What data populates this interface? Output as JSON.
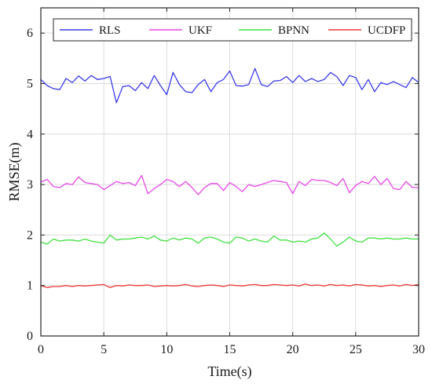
{
  "chart_data": {
    "type": "line",
    "title": "",
    "xlabel": "Time(s)",
    "ylabel": "RMSE(m)",
    "xlim": [
      0,
      30
    ],
    "ylim": [
      0,
      6.5
    ],
    "xticks": [
      0,
      5,
      10,
      15,
      20,
      25,
      30
    ],
    "xtick_labels": [
      "0",
      "5",
      "10",
      "15",
      "20",
      "25",
      "30"
    ],
    "yticks": [
      0,
      1,
      2,
      3,
      4,
      5,
      6
    ],
    "ytick_labels": [
      "0",
      "1",
      "2",
      "3",
      "4",
      "5",
      "6"
    ],
    "grid": true,
    "legend_position": "top",
    "x": [
      0,
      0.5,
      1,
      1.5,
      2,
      2.5,
      3,
      3.5,
      4,
      4.5,
      5,
      5.5,
      6,
      6.5,
      7,
      7.5,
      8,
      8.5,
      9,
      9.5,
      10,
      10.5,
      11,
      11.5,
      12,
      12.5,
      13,
      13.5,
      14,
      14.5,
      15,
      15.5,
      16,
      16.5,
      17,
      17.5,
      18,
      18.5,
      19,
      19.5,
      20,
      20.5,
      21,
      21.5,
      22,
      22.5,
      23,
      23.5,
      24,
      24.5,
      25,
      25.5,
      26,
      26.5,
      27,
      27.5,
      28,
      28.5,
      29,
      29.5,
      30
    ],
    "series": [
      {
        "name": "RLS",
        "color": "#3b3bea",
        "values": [
          5.08,
          4.96,
          4.9,
          4.88,
          5.1,
          5.02,
          5.15,
          5.05,
          5.16,
          5.08,
          5.1,
          5.14,
          4.62,
          4.94,
          4.96,
          4.86,
          5.02,
          4.9,
          5.16,
          4.96,
          4.78,
          5.22,
          4.98,
          4.84,
          4.82,
          4.98,
          5.08,
          4.84,
          5.02,
          5.08,
          5.25,
          4.96,
          4.95,
          4.98,
          5.3,
          4.98,
          4.94,
          5.05,
          5.06,
          5.14,
          5.02,
          5.16,
          5.04,
          5.1,
          5.04,
          5.08,
          5.22,
          5.14,
          4.96,
          5.16,
          5.12,
          4.88,
          5.08,
          4.84,
          5.02,
          4.98,
          5.04,
          4.98,
          4.92,
          5.12,
          5.02
        ]
      },
      {
        "name": "UKF",
        "color": "#e649e6",
        "values": [
          3.05,
          3.1,
          2.96,
          2.94,
          3.02,
          3.0,
          3.15,
          3.04,
          3.02,
          3.0,
          2.9,
          2.98,
          3.06,
          3.02,
          3.04,
          2.98,
          3.18,
          2.82,
          2.92,
          3.0,
          3.1,
          3.06,
          2.96,
          3.06,
          2.94,
          2.8,
          2.94,
          3.02,
          3.02,
          2.88,
          3.04,
          2.96,
          2.86,
          3.0,
          2.96,
          3.0,
          3.04,
          3.08,
          3.06,
          3.04,
          2.82,
          3.06,
          2.98,
          3.1,
          3.08,
          3.08,
          3.04,
          2.98,
          3.12,
          2.84,
          2.98,
          3.06,
          3.02,
          3.16,
          3.0,
          3.12,
          2.92,
          2.9,
          3.06,
          2.94,
          2.94
        ]
      },
      {
        "name": "BPNN",
        "color": "#40e040",
        "values": [
          1.86,
          1.82,
          1.92,
          1.88,
          1.9,
          1.9,
          1.88,
          1.92,
          1.88,
          1.86,
          1.84,
          2.0,
          1.9,
          1.92,
          1.92,
          1.94,
          1.96,
          1.92,
          1.98,
          1.9,
          1.88,
          1.94,
          1.9,
          1.94,
          1.92,
          1.84,
          1.94,
          1.96,
          1.92,
          1.86,
          1.84,
          1.96,
          1.94,
          1.88,
          1.92,
          1.88,
          1.86,
          1.98,
          1.9,
          1.9,
          1.86,
          1.88,
          1.86,
          1.92,
          1.94,
          2.04,
          1.92,
          1.78,
          1.86,
          1.96,
          1.88,
          1.86,
          1.94,
          1.94,
          1.92,
          1.94,
          1.92,
          1.92,
          1.94,
          1.92,
          1.92
        ]
      },
      {
        "name": "UCDFP",
        "color": "#ee3a3a",
        "values": [
          1.0,
          0.96,
          0.98,
          0.98,
          1.0,
          0.98,
          1.0,
          0.99,
          1.0,
          1.01,
          1.02,
          0.96,
          1.0,
          0.99,
          1.01,
          1.0,
          1.0,
          1.01,
          0.98,
          0.99,
          1.0,
          0.99,
          1.0,
          1.02,
          0.99,
          0.98,
          1.0,
          1.01,
          1.0,
          0.98,
          1.01,
          1.0,
          0.99,
          1.01,
          1.02,
          1.0,
          1.0,
          1.02,
          1.01,
          1.0,
          1.01,
          0.99,
          1.03,
          1.0,
          1.01,
          0.99,
          1.02,
          1.0,
          1.01,
          0.99,
          1.02,
          1.01,
          0.99,
          1.0,
          0.98,
          1.0,
          1.01,
          0.99,
          1.02,
          1.0,
          1.02
        ]
      }
    ]
  }
}
